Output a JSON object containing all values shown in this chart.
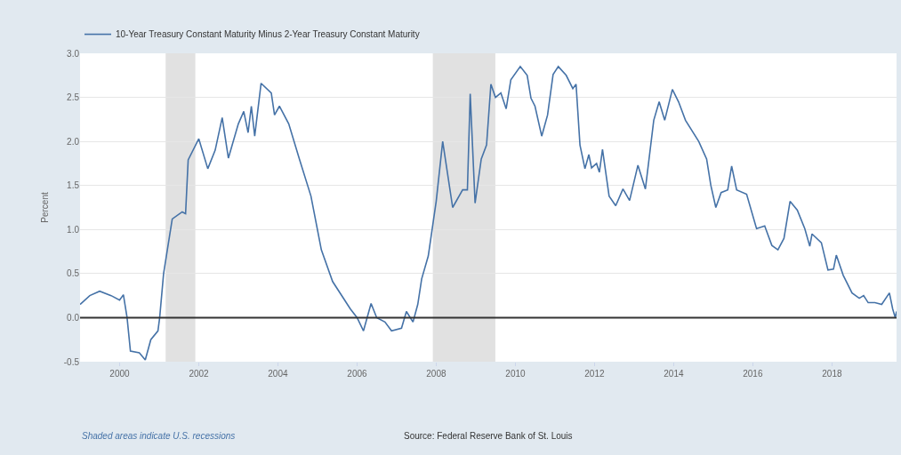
{
  "chart_data": {
    "type": "line",
    "ylabel": "Percent",
    "x": [
      "1999-01-01",
      "1999-04-01",
      "1999-07-01",
      "1999-10-15",
      "2000-01-01",
      "2000-02-05",
      "2000-03-10",
      "2000-04-10",
      "2000-07-01",
      "2000-08-25",
      "2000-10-15",
      "2000-12-20",
      "2001-01-05",
      "2001-02-10",
      "2001-05-01",
      "2001-08-01",
      "2001-09-01",
      "2001-09-25",
      "2002-01-01",
      "2002-03-25",
      "2002-06-01",
      "2002-08-05",
      "2002-10-01",
      "2003-01-01",
      "2003-02-20",
      "2003-04-01",
      "2003-05-01",
      "2003-06-01",
      "2003-07-30",
      "2003-11-01",
      "2003-12-01",
      "2004-01-15",
      "2004-04-10",
      "2004-07-20",
      "2004-11-01",
      "2005-02-05",
      "2005-05-20",
      "2005-10-30",
      "2006-01-01",
      "2006-03-01",
      "2006-05-10",
      "2006-07-01",
      "2006-09-15",
      "2006-11-15",
      "2007-02-15",
      "2007-04-01",
      "2007-06-01",
      "2007-07-15",
      "2007-08-20",
      "2007-10-20",
      "2008-01-01",
      "2008-03-01",
      "2008-06-01",
      "2008-09-01",
      "2008-10-15",
      "2008-11-10",
      "2008-12-25",
      "2009-02-20",
      "2009-04-10",
      "2009-05-20",
      "2009-07-01",
      "2009-08-20",
      "2009-10-08",
      "2009-11-20",
      "2010-02-15",
      "2010-04-20",
      "2010-05-25",
      "2010-07-01",
      "2010-09-01",
      "2010-10-25",
      "2010-12-15",
      "2011-02-01",
      "2011-04-15",
      "2011-06-15",
      "2011-07-15",
      "2011-08-20",
      "2011-10-05",
      "2011-11-10",
      "2011-12-05",
      "2012-01-20",
      "2012-02-15",
      "2012-03-15",
      "2012-05-15",
      "2012-07-15",
      "2012-09-20",
      "2012-11-20",
      "2013-02-05",
      "2013-04-15",
      "2013-07-01",
      "2013-08-20",
      "2013-10-10",
      "2013-12-20",
      "2014-02-15",
      "2014-04-20",
      "2014-08-20",
      "2014-11-01",
      "2014-12-10",
      "2015-01-25",
      "2015-03-15",
      "2015-05-15",
      "2015-06-20",
      "2015-08-05",
      "2015-11-05",
      "2016-02-05",
      "2016-04-20",
      "2016-06-25",
      "2016-08-20",
      "2016-10-15",
      "2016-12-10",
      "2017-02-15",
      "2017-04-25",
      "2017-06-10",
      "2017-07-01",
      "2017-09-25",
      "2017-11-25",
      "2018-01-15",
      "2018-02-10",
      "2018-04-15",
      "2018-07-05",
      "2018-09-10",
      "2018-10-20",
      "2018-12-01",
      "2019-02-01",
      "2019-04-05",
      "2019-06-15",
      "2019-07-15",
      "2019-08-08",
      "2019-08-20"
    ],
    "series": [
      {
        "name": "10-Year Treasury Constant Maturity Minus 2-Year Treasury Constant Maturity",
        "color": "#4572a7",
        "values": [
          0.15,
          0.25,
          0.3,
          0.25,
          0.2,
          0.26,
          0.0,
          -0.38,
          -0.4,
          -0.48,
          -0.25,
          -0.15,
          0.0,
          0.5,
          1.12,
          1.2,
          1.18,
          1.79,
          2.03,
          1.69,
          1.9,
          2.27,
          1.81,
          2.2,
          2.34,
          2.1,
          2.4,
          2.06,
          2.66,
          2.55,
          2.3,
          2.4,
          2.2,
          1.79,
          1.38,
          0.77,
          0.41,
          0.1,
          0.0,
          -0.15,
          0.16,
          0.0,
          -0.05,
          -0.15,
          -0.12,
          0.07,
          -0.05,
          0.15,
          0.44,
          0.7,
          1.32,
          2.0,
          1.25,
          1.45,
          1.45,
          2.54,
          1.3,
          1.8,
          1.96,
          2.65,
          2.5,
          2.55,
          2.37,
          2.7,
          2.85,
          2.75,
          2.49,
          2.4,
          2.06,
          2.3,
          2.76,
          2.85,
          2.75,
          2.6,
          2.65,
          1.96,
          1.69,
          1.85,
          1.7,
          1.75,
          1.65,
          1.91,
          1.38,
          1.27,
          1.46,
          1.33,
          1.73,
          1.46,
          2.24,
          2.45,
          2.24,
          2.59,
          2.45,
          2.24,
          2.0,
          1.8,
          1.5,
          1.25,
          1.42,
          1.45,
          1.72,
          1.45,
          1.4,
          1.01,
          1.04,
          0.82,
          0.77,
          0.9,
          1.32,
          1.22,
          1.01,
          0.81,
          0.95,
          0.85,
          0.54,
          0.55,
          0.71,
          0.48,
          0.28,
          0.22,
          0.25,
          0.17,
          0.17,
          0.15,
          0.28,
          0.1,
          0.0,
          0.07
        ]
      }
    ],
    "xlim": [
      "1999-01-01",
      "2019-08-20"
    ],
    "xticks": [
      {
        "value": "2000-01-01",
        "label": "2000"
      },
      {
        "value": "2002-01-01",
        "label": "2002"
      },
      {
        "value": "2004-01-01",
        "label": "2004"
      },
      {
        "value": "2006-01-01",
        "label": "2006"
      },
      {
        "value": "2008-01-01",
        "label": "2008"
      },
      {
        "value": "2010-01-01",
        "label": "2010"
      },
      {
        "value": "2012-01-01",
        "label": "2012"
      },
      {
        "value": "2014-01-01",
        "label": "2014"
      },
      {
        "value": "2016-01-01",
        "label": "2016"
      },
      {
        "value": "2018-01-01",
        "label": "2018"
      }
    ],
    "ylim": [
      -0.5,
      3.0
    ],
    "yticks": [
      {
        "value": -0.5,
        "label": "-0.5"
      },
      {
        "value": 0,
        "label": "0.0"
      },
      {
        "value": 0.5,
        "label": "0.5"
      },
      {
        "value": 1,
        "label": "1.0"
      },
      {
        "value": 1.5,
        "label": "1.5"
      },
      {
        "value": 2,
        "label": "2.0"
      },
      {
        "value": 2.5,
        "label": "2.5"
      },
      {
        "value": 3,
        "label": "3.0"
      }
    ],
    "bands": [
      {
        "axis": "x",
        "from": "2001-03-01",
        "to": "2001-11-30",
        "color": "#e1e1e1"
      },
      {
        "axis": "x",
        "from": "2007-12-01",
        "to": "2009-06-30",
        "color": "#e1e1e1"
      }
    ],
    "ref_lines": [
      {
        "axis": "y",
        "value": 0,
        "color": "#333333"
      }
    ],
    "annotations": [
      "Shaded areas indicate U.S. recessions",
      "Source: Federal Reserve Bank of St. Louis"
    ],
    "grid": "y",
    "legend": "top left",
    "line_style": "solid",
    "marker": "none"
  }
}
